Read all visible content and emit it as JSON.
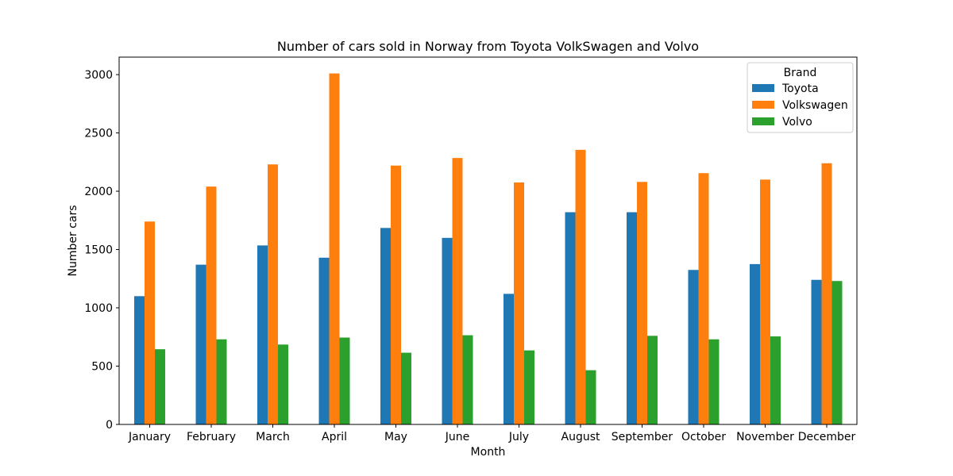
{
  "chart_data": {
    "type": "bar",
    "title": "Number of cars sold in Norway from Toyota VolkSwagen and Volvo",
    "xlabel": "Month",
    "ylabel": "Number cars",
    "categories": [
      "January",
      "February",
      "March",
      "April",
      "May",
      "June",
      "July",
      "August",
      "September",
      "October",
      "November",
      "December"
    ],
    "series": [
      {
        "name": "Toyota",
        "color": "#1f77b4",
        "values": [
          1100,
          1370,
          1535,
          1430,
          1685,
          1600,
          1120,
          1820,
          1820,
          1325,
          1375,
          1240
        ]
      },
      {
        "name": "Volkswagen",
        "color": "#ff7f0e",
        "values": [
          1740,
          2040,
          2230,
          3010,
          2220,
          2285,
          2075,
          2355,
          2080,
          2155,
          2100,
          2240
        ]
      },
      {
        "name": "Volvo",
        "color": "#2ca02c",
        "values": [
          645,
          730,
          685,
          745,
          615,
          765,
          635,
          465,
          760,
          730,
          755,
          1230
        ]
      }
    ],
    "ylim": [
      0,
      3150
    ],
    "yticks": [
      0,
      500,
      1000,
      1500,
      2000,
      2500,
      3000
    ],
    "legend": {
      "title": "Brand",
      "position": "top-right"
    },
    "grid": false
  }
}
